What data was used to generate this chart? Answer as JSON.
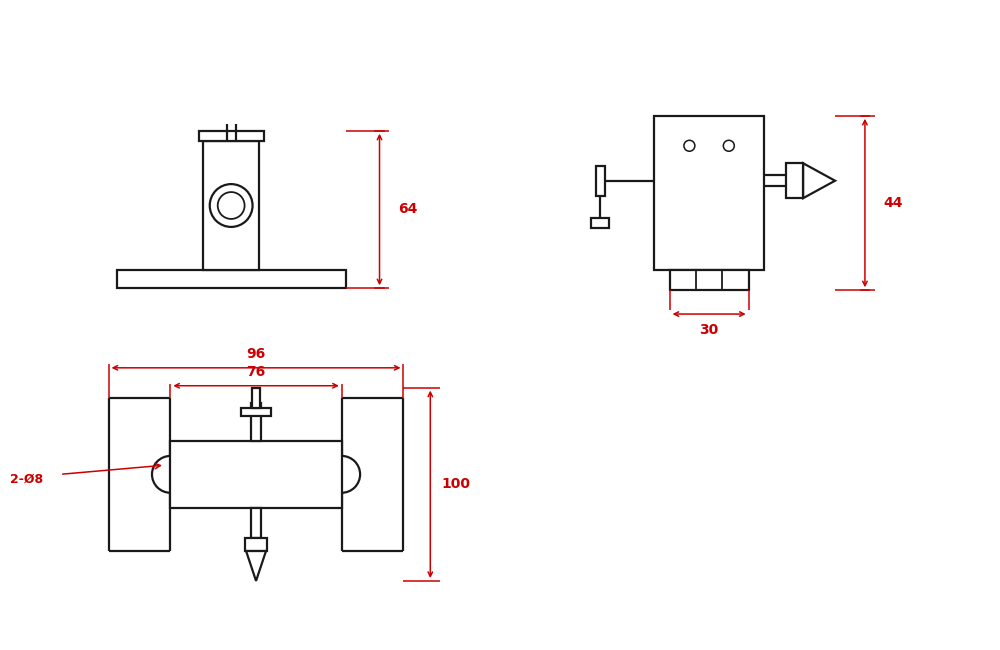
{
  "bg_color": "#ffffff",
  "line_color": "#1a1a1a",
  "dim_color": "#cc0000",
  "lw": 1.6,
  "dim_lw": 1.1,
  "fig_w": 10.0,
  "fig_h": 6.5,
  "dpi": 100
}
